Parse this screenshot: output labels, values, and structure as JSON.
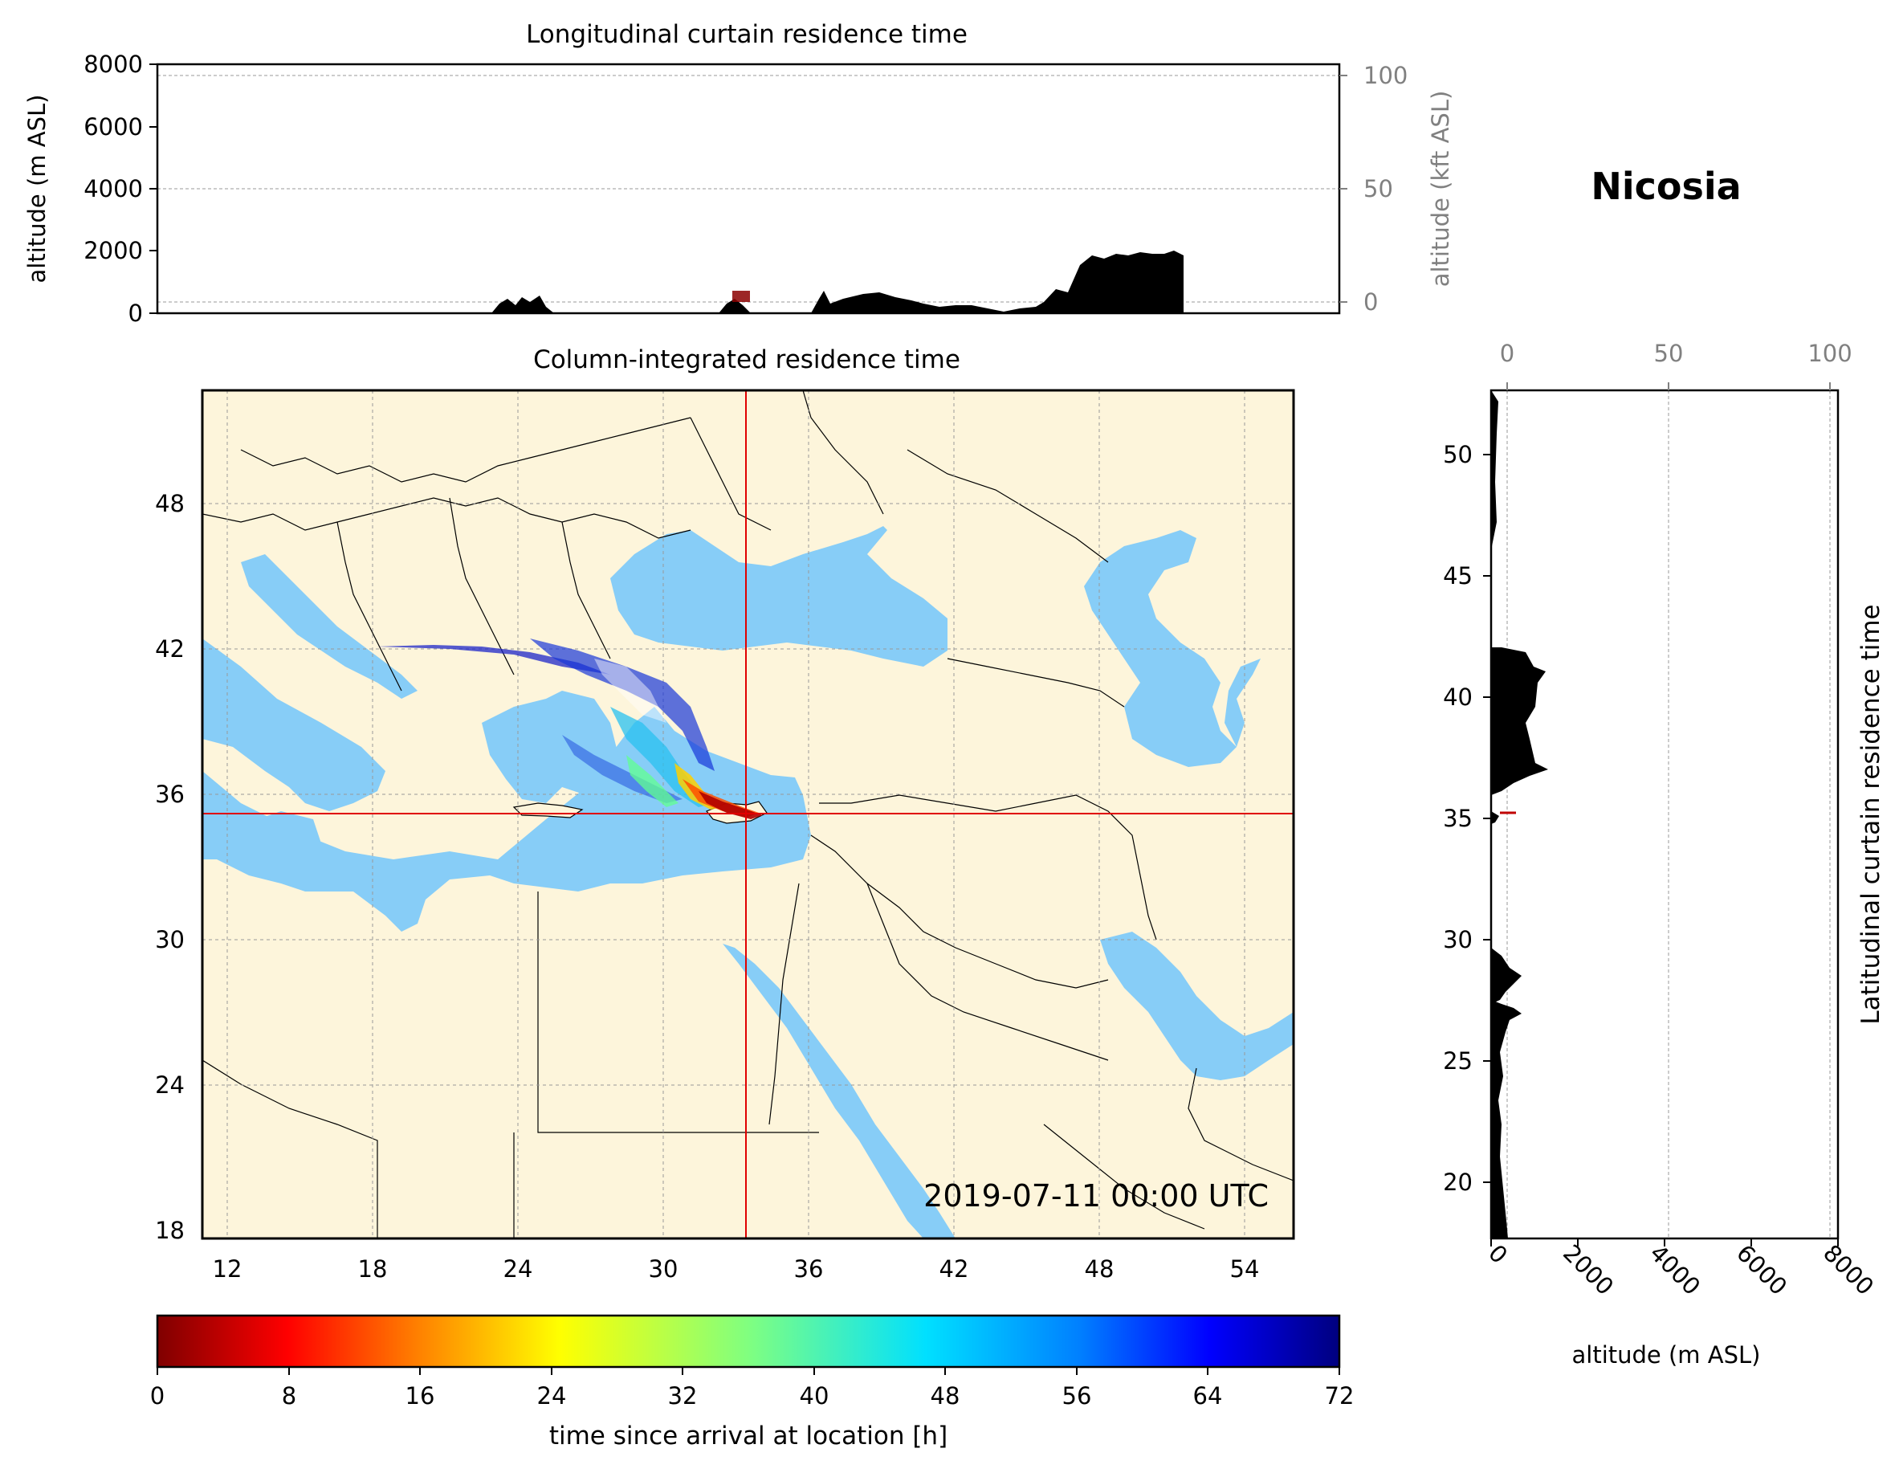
{
  "location_name": "Nicosia",
  "timestamp": "2019-07-11 00:00 UTC",
  "colors": {
    "land": "#fdf5db",
    "sea": "#87cdf7",
    "crosshair": "#e00000",
    "terrain": "#000000",
    "secondary_axis": "#808080"
  },
  "top_panel": {
    "title": "Longitudinal curtain residence time",
    "ylabel_left": "altitude (m ASL)",
    "ylabel_right": "altitude (kft ASL)",
    "yticks_left": [
      "0",
      "2000",
      "4000",
      "6000",
      "8000"
    ],
    "yticks_right": [
      "0",
      "50",
      "100"
    ]
  },
  "map_panel": {
    "title": "Column-integrated residence time",
    "xticks": [
      "12",
      "18",
      "24",
      "30",
      "36",
      "42",
      "48",
      "54"
    ],
    "yticks": [
      "18",
      "24",
      "30",
      "36",
      "42",
      "48"
    ],
    "lon_range": [
      11,
      56
    ],
    "lat_range": [
      18,
      53
    ],
    "crosshair": {
      "lon": 33.4,
      "lat": 35.2
    }
  },
  "right_panel": {
    "ylabel": "Latitudinal curtain residence time",
    "xlabel": "altitude (m ASL)",
    "xticks_bottom": [
      "0",
      "2000",
      "4000",
      "6000",
      "8000"
    ],
    "xticks_top": [
      "0",
      "50",
      "100"
    ],
    "yticks": [
      "20",
      "25",
      "30",
      "35",
      "40",
      "45",
      "50"
    ]
  },
  "colorbar": {
    "label": "time since arrival at location [h]",
    "ticks": [
      "0",
      "8",
      "16",
      "24",
      "32",
      "40",
      "48",
      "56",
      "64",
      "72"
    ],
    "range": [
      0,
      72
    ],
    "colormap": "jet_r"
  }
}
